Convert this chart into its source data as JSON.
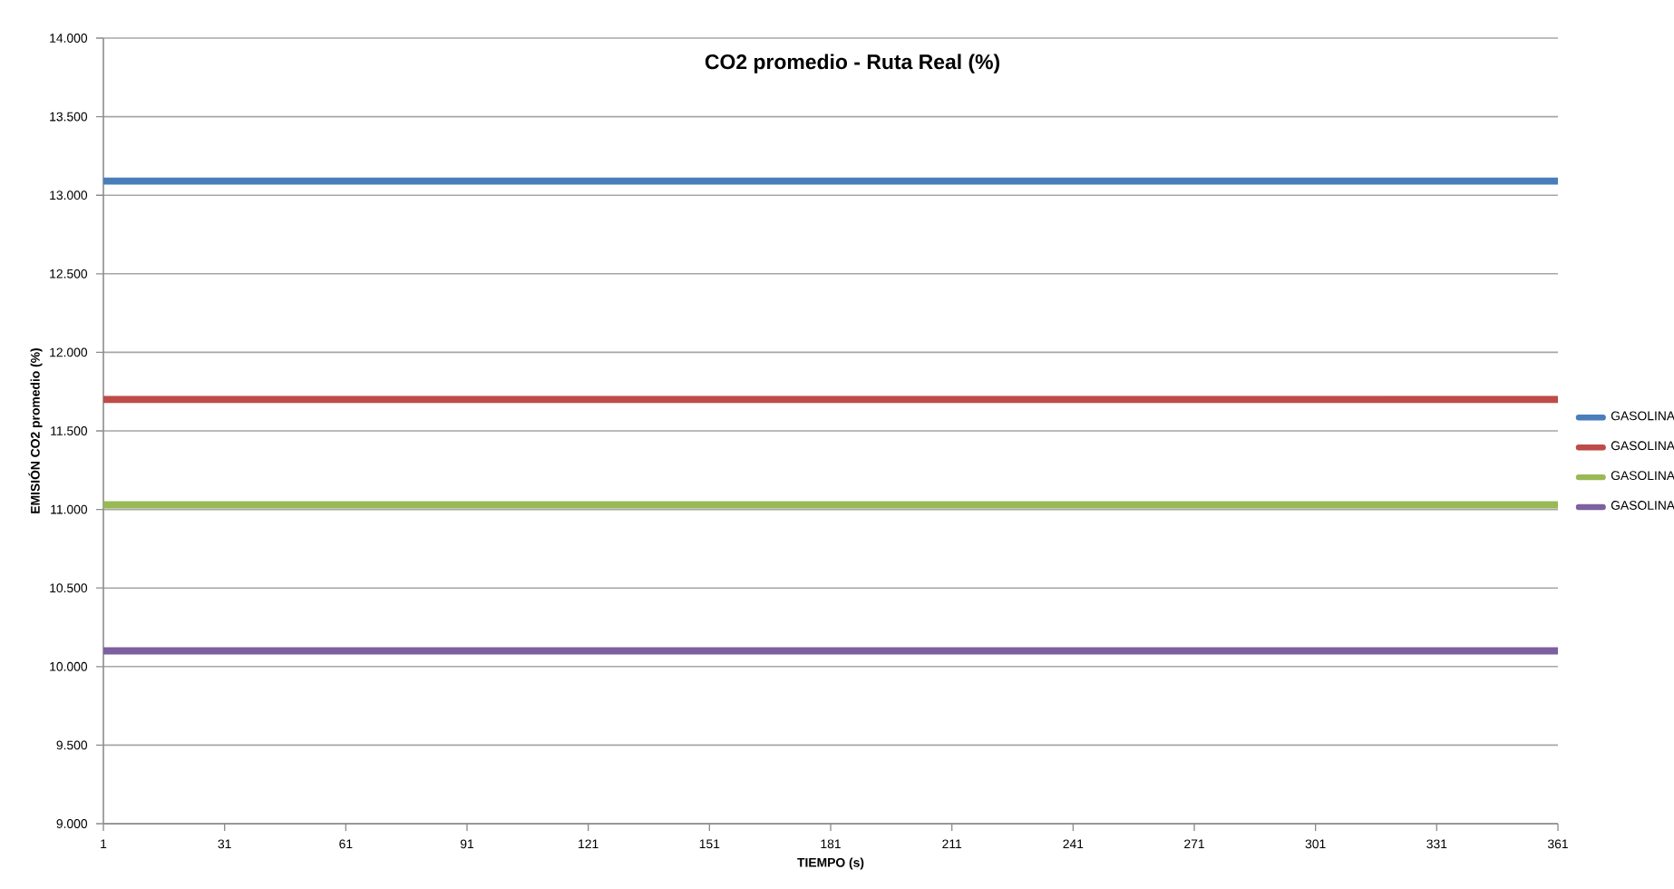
{
  "chart_data": {
    "type": "line",
    "title": "CO2 promedio  -  Ruta Real (%)",
    "xlabel": "TIEMPO (s)",
    "ylabel": "EMISIÓN CO2 promedio (%)",
    "x": [
      1,
      361
    ],
    "series": [
      {
        "name": "GASOLINA",
        "color": "#4a7ebb",
        "values": [
          13.09,
          13.09
        ]
      },
      {
        "name": "GASOLINA",
        "color": "#be4b48",
        "values": [
          11.7,
          11.7
        ]
      },
      {
        "name": "GASOLINA",
        "color": "#98b954",
        "values": [
          11.03,
          11.03
        ]
      },
      {
        "name": "GASOLINA",
        "color": "#7d60a0",
        "values": [
          10.1,
          10.1
        ]
      }
    ],
    "xlim": [
      1,
      361
    ],
    "xticks": [
      1,
      31,
      61,
      91,
      121,
      151,
      181,
      211,
      241,
      271,
      301,
      331,
      361
    ],
    "ylim": [
      9,
      14
    ],
    "yticks": [
      {
        "value": 9,
        "label": "9.000"
      },
      {
        "value": 9.5,
        "label": "9.500"
      },
      {
        "value": 10,
        "label": "10.000"
      },
      {
        "value": 10.5,
        "label": "10.500"
      },
      {
        "value": 11,
        "label": "11.000"
      },
      {
        "value": 11.5,
        "label": "11.500"
      },
      {
        "value": 12,
        "label": "12.000"
      },
      {
        "value": 12.5,
        "label": "12.500"
      },
      {
        "value": 13,
        "label": "13.000"
      },
      {
        "value": 13.5,
        "label": "13.500"
      },
      {
        "value": 14,
        "label": "14.000"
      }
    ],
    "grid": "y",
    "legend": "right",
    "marker": "none",
    "line_style": "solid"
  }
}
